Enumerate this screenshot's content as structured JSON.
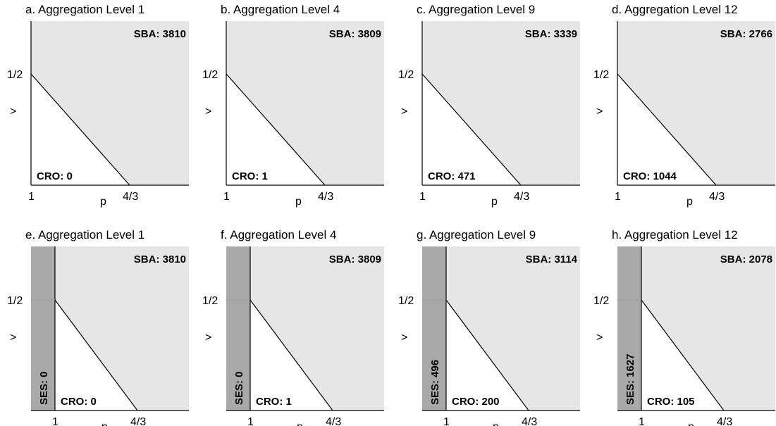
{
  "panels": [
    {
      "title": "a. Aggregation Level 1",
      "sba": "SBA: 3810",
      "cro": "CRO: 0",
      "ses": ""
    },
    {
      "title": "b. Aggregation Level 4",
      "sba": "SBA: 3809",
      "cro": "CRO: 1",
      "ses": ""
    },
    {
      "title": "c. Aggregation Level 9",
      "sba": "SBA: 3339",
      "cro": "CRO: 471",
      "ses": ""
    },
    {
      "title": "d. Aggregation Level 12",
      "sba": "SBA: 2766",
      "cro": "CRO: 1044",
      "ses": ""
    },
    {
      "title": "e. Aggregation Level 1",
      "sba": "SBA: 3810",
      "cro": "CRO: 0",
      "ses": "SES: 0"
    },
    {
      "title": "f. Aggregation Level 4",
      "sba": "SBA: 3809",
      "cro": "CRO: 1",
      "ses": "SES: 0"
    },
    {
      "title": "g. Aggregation Level 9",
      "sba": "SBA: 3114",
      "cro": "CRO: 200",
      "ses": "SES: 496"
    },
    {
      "title": "h. Aggregation Level 12",
      "sba": "SBA: 2078",
      "cro": "CRO: 105",
      "ses": "SES: 1627"
    }
  ],
  "axes": {
    "x_label": "p",
    "x_start": "1",
    "x_end": "4/3",
    "y_label": ">",
    "y_mark": "1/2"
  },
  "colors": {
    "sba_region": "#e6e6e6",
    "cro_region": "#ffffff",
    "ses_band": "#a9a9a9",
    "lines": "#000000"
  }
}
